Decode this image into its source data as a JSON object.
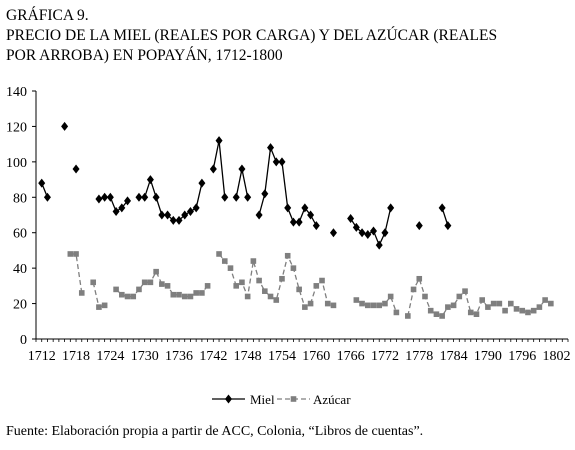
{
  "title": {
    "line1": "GRÁFICA 9.",
    "line2": "PRECIO DE LA MIEL (REALES POR CARGA) Y DEL AZÚCAR (REALES",
    "line3": "POR ARROBA) EN POPAYÁN, 1712-1800"
  },
  "source": "Fuente: Elaboración propia a partir de ACC, Colonia, “Libros de cuentas”.",
  "chart_data": {
    "type": "line",
    "title": "PRECIO DE LA MIEL (REALES POR CARGA) Y DEL AZÚCAR (REALES POR ARROBA) EN POPAYÁN, 1712-1800",
    "xlim": [
      1711,
      1804
    ],
    "ylim": [
      0,
      140
    ],
    "x_ticks": [
      1712,
      1718,
      1724,
      1730,
      1736,
      1742,
      1748,
      1754,
      1760,
      1766,
      1772,
      1778,
      1784,
      1790,
      1796,
      1802
    ],
    "y_ticks": [
      0,
      20,
      40,
      60,
      80,
      100,
      120,
      140
    ],
    "grid": false,
    "legend_position": "bottom",
    "series": [
      {
        "name": "Miel",
        "color": "#000000",
        "marker": "diamond",
        "points": [
          [
            1712,
            88
          ],
          [
            1713,
            80
          ],
          null,
          [
            1716,
            120
          ],
          null,
          [
            1718,
            96
          ],
          null,
          [
            1722,
            79
          ],
          [
            1723,
            80
          ],
          [
            1724,
            80
          ],
          [
            1725,
            72
          ],
          [
            1726,
            74
          ],
          [
            1727,
            78
          ],
          null,
          [
            1729,
            80
          ],
          [
            1730,
            80
          ],
          [
            1731,
            90
          ],
          [
            1732,
            80
          ],
          [
            1733,
            70
          ],
          [
            1734,
            70
          ],
          [
            1735,
            67
          ],
          [
            1736,
            67
          ],
          [
            1737,
            70
          ],
          [
            1738,
            72
          ],
          [
            1739,
            74
          ],
          [
            1740,
            88
          ],
          null,
          [
            1742,
            96
          ],
          [
            1743,
            112
          ],
          [
            1744,
            80
          ],
          null,
          [
            1746,
            80
          ],
          [
            1747,
            96
          ],
          [
            1748,
            80
          ],
          null,
          [
            1750,
            70
          ],
          [
            1751,
            82
          ],
          [
            1752,
            108
          ],
          [
            1753,
            100
          ],
          [
            1754,
            100
          ],
          [
            1755,
            74
          ],
          [
            1756,
            66
          ],
          [
            1757,
            66
          ],
          [
            1758,
            74
          ],
          [
            1759,
            70
          ],
          [
            1760,
            64
          ],
          null,
          [
            1763,
            60
          ],
          null,
          [
            1766,
            68
          ],
          [
            1767,
            63
          ],
          [
            1768,
            60
          ],
          [
            1769,
            59
          ],
          [
            1770,
            61
          ],
          [
            1771,
            53
          ],
          [
            1772,
            60
          ],
          [
            1773,
            74
          ],
          null,
          [
            1778,
            64
          ],
          null,
          [
            1782,
            74
          ],
          [
            1783,
            64
          ]
        ]
      },
      {
        "name": "Azúcar",
        "color": "#7f7f7f",
        "marker": "square",
        "points": [
          [
            1717,
            48
          ],
          [
            1718,
            48
          ],
          [
            1719,
            26
          ],
          null,
          [
            1721,
            32
          ],
          [
            1722,
            18
          ],
          [
            1723,
            19
          ],
          null,
          [
            1725,
            28
          ],
          [
            1726,
            25
          ],
          [
            1727,
            24
          ],
          [
            1728,
            24
          ],
          [
            1729,
            28
          ],
          [
            1730,
            32
          ],
          [
            1731,
            32
          ],
          [
            1732,
            38
          ],
          [
            1733,
            31
          ],
          [
            1734,
            30
          ],
          [
            1735,
            25
          ],
          [
            1736,
            25
          ],
          [
            1737,
            24
          ],
          [
            1738,
            24
          ],
          [
            1739,
            26
          ],
          [
            1740,
            26
          ],
          [
            1741,
            30
          ],
          null,
          [
            1743,
            48
          ],
          [
            1744,
            44
          ],
          [
            1745,
            40
          ],
          [
            1746,
            30
          ],
          [
            1747,
            32
          ],
          [
            1748,
            24
          ],
          [
            1749,
            44
          ],
          [
            1750,
            33
          ],
          [
            1751,
            27
          ],
          [
            1752,
            24
          ],
          [
            1753,
            22
          ],
          [
            1754,
            34
          ],
          [
            1755,
            47
          ],
          [
            1756,
            40
          ],
          [
            1757,
            28
          ],
          [
            1758,
            18
          ],
          [
            1759,
            20
          ],
          [
            1760,
            30
          ],
          [
            1761,
            33
          ],
          [
            1762,
            20
          ],
          [
            1763,
            19
          ],
          null,
          [
            1767,
            22
          ],
          [
            1768,
            20
          ],
          [
            1769,
            19
          ],
          [
            1770,
            19
          ],
          [
            1771,
            19
          ],
          [
            1772,
            20
          ],
          [
            1773,
            24
          ],
          [
            1774,
            15
          ],
          null,
          [
            1776,
            13
          ],
          [
            1777,
            28
          ],
          [
            1778,
            34
          ],
          [
            1779,
            24
          ],
          [
            1780,
            16
          ],
          [
            1781,
            14
          ],
          [
            1782,
            13
          ],
          [
            1783,
            18
          ],
          [
            1784,
            19
          ],
          [
            1785,
            24
          ],
          [
            1786,
            27
          ],
          [
            1787,
            15
          ],
          [
            1788,
            14
          ],
          [
            1789,
            22
          ],
          [
            1790,
            18
          ],
          [
            1791,
            20
          ],
          [
            1792,
            20
          ],
          [
            1793,
            16
          ],
          [
            1794,
            20
          ],
          [
            1795,
            17
          ],
          [
            1796,
            16
          ],
          [
            1797,
            15
          ],
          [
            1798,
            16
          ],
          [
            1799,
            18
          ],
          [
            1800,
            22
          ],
          [
            1801,
            20
          ]
        ]
      }
    ]
  }
}
